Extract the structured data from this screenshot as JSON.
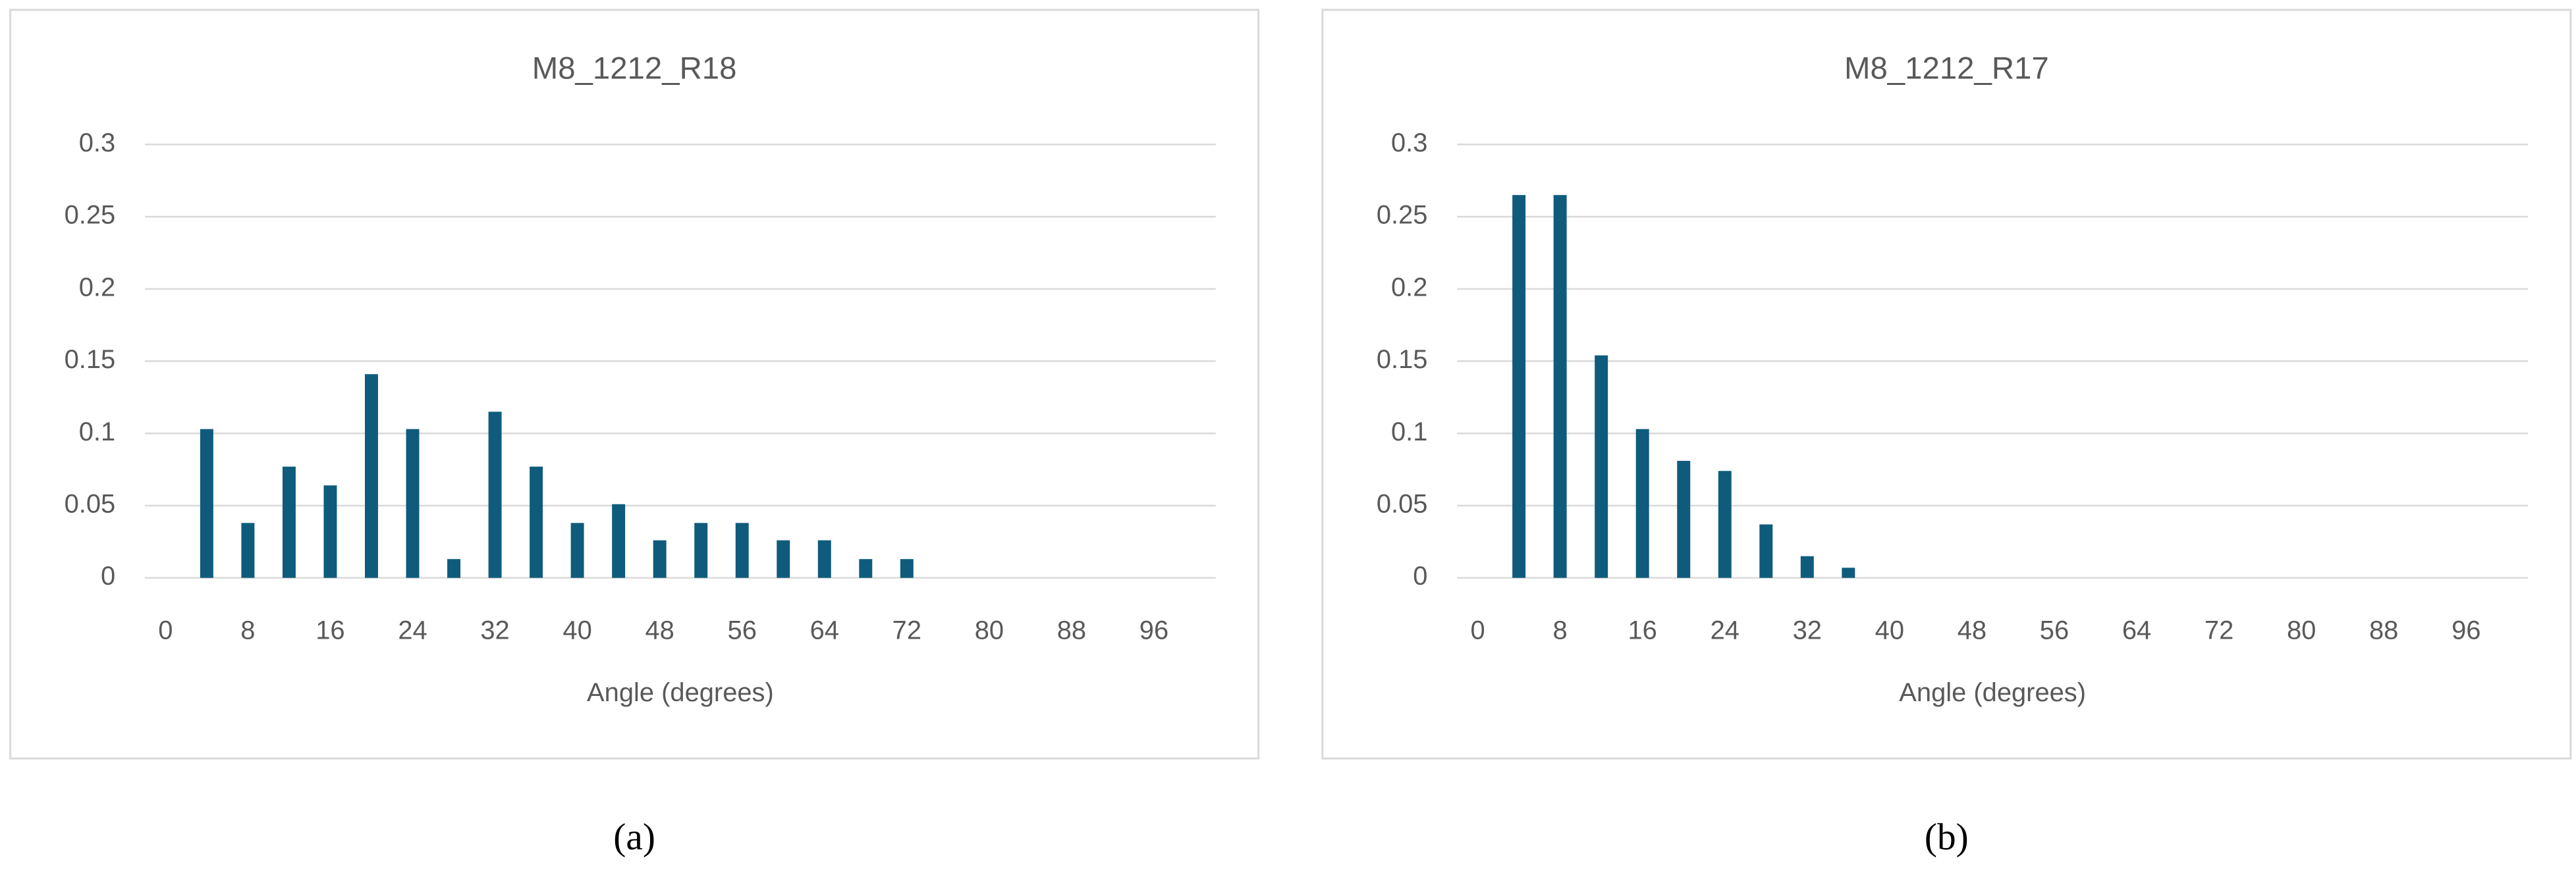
{
  "chart_data": [
    {
      "type": "bar",
      "title": "M8_1212_R18",
      "x_label": "Angle (degrees)",
      "caption": "(a)",
      "categories": [
        0,
        null,
        8,
        null,
        16,
        null,
        24,
        null,
        32,
        null,
        40,
        null,
        48,
        null,
        56,
        null,
        64,
        null,
        72,
        null,
        80,
        null,
        88,
        null,
        96,
        null
      ],
      "values": [
        0,
        0.103,
        0.038,
        0.077,
        0.064,
        0.141,
        0.103,
        0.013,
        0.115,
        0.077,
        0.038,
        0.051,
        0.026,
        0.038,
        0.038,
        0.026,
        0.026,
        0.013,
        0.013,
        0,
        0,
        0,
        0,
        0,
        0,
        0
      ],
      "color": "#0f5b7c",
      "ylim": [
        0,
        0.3
      ],
      "yticks": [
        0,
        0.05,
        0.1,
        0.15,
        0.2,
        0.25,
        0.3
      ],
      "grid": true
    },
    {
      "type": "bar",
      "title": "M8_1212_R17",
      "x_label": "Angle (degrees)",
      "caption": "(b)",
      "categories": [
        0,
        null,
        8,
        null,
        16,
        null,
        24,
        null,
        32,
        null,
        40,
        null,
        48,
        null,
        56,
        null,
        64,
        null,
        72,
        null,
        80,
        null,
        88,
        null,
        96,
        null
      ],
      "values": [
        0,
        0.265,
        0.265,
        0.154,
        0.103,
        0.081,
        0.074,
        0.037,
        0.015,
        0.007,
        0,
        0,
        0,
        0,
        0,
        0,
        0,
        0,
        0,
        0,
        0,
        0,
        0,
        0,
        0,
        0
      ],
      "color": "#0f5b7c",
      "ylim": [
        0,
        0.3
      ],
      "yticks": [
        0,
        0.05,
        0.1,
        0.15,
        0.2,
        0.25,
        0.3
      ],
      "grid": true
    }
  ]
}
